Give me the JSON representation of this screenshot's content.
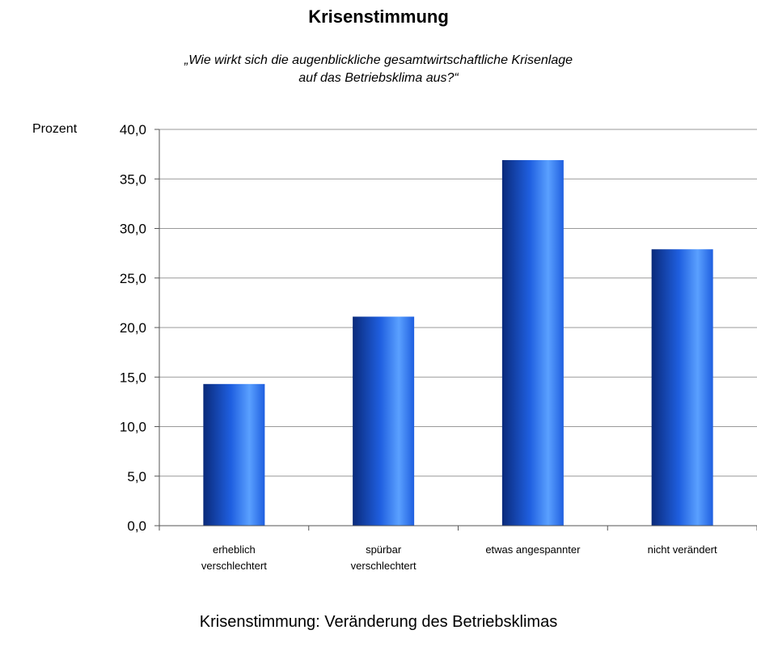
{
  "chart_data": {
    "type": "bar",
    "title": "Krisenstimmung",
    "subtitle_lines": [
      "„Wie wirkt sich die augenblickliche gesamtwirtschaftliche Krisenlage",
      "auf das Betriebsklima aus?“"
    ],
    "ylabel": "Prozent",
    "caption": "Krisenstimmung: Veränderung des Betriebsklimas",
    "ylim": [
      0,
      40
    ],
    "yticks": [
      "0,0",
      "5,0",
      "10,0",
      "15,0",
      "20,0",
      "25,0",
      "30,0",
      "35,0",
      "40,0"
    ],
    "categories": [
      [
        "erheblich",
        "verschlechtert"
      ],
      [
        "spürbar",
        "verschlechtert"
      ],
      [
        "etwas angespannter"
      ],
      [
        "nicht verändert"
      ]
    ],
    "values": [
      14.3,
      21.1,
      36.9,
      27.9
    ],
    "grid": true,
    "colors": {
      "bar_dark": "#0a2a7a",
      "bar_mid": "#1f5fe0",
      "bar_light": "#5aa0ff",
      "grid": "#9a9a9a"
    }
  }
}
